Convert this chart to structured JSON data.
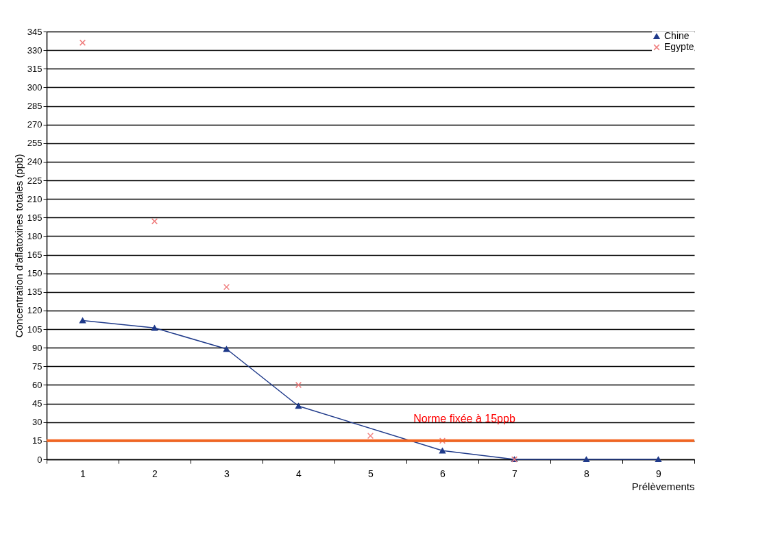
{
  "chart_data": {
    "type": "line",
    "xlabel": "Prélèvements",
    "ylabel": "Concentration d'aflatoxines totales (ppb)",
    "categories": [
      "1",
      "2",
      "3",
      "4",
      "5",
      "6",
      "7",
      "8",
      "9"
    ],
    "series": [
      {
        "name": "Chine",
        "type": "line",
        "marker": "triangle",
        "color": "#1f3a8a",
        "x": [
          "1",
          "2",
          "3",
          "4",
          "6",
          "7",
          "8",
          "9"
        ],
        "values": [
          112,
          106,
          89,
          43,
          7,
          0,
          0,
          0
        ]
      },
      {
        "name": "Egypte",
        "type": "scatter",
        "marker": "cross",
        "color": "#f08080",
        "x": [
          "1",
          "2",
          "3",
          "4",
          "5",
          "6",
          "7"
        ],
        "values": [
          336,
          192,
          139,
          60,
          19,
          15,
          0
        ]
      }
    ],
    "ylim": [
      0,
      345
    ],
    "yticks": [
      0,
      15,
      30,
      45,
      60,
      75,
      90,
      105,
      120,
      135,
      150,
      165,
      180,
      195,
      210,
      225,
      240,
      255,
      270,
      285,
      300,
      315,
      330,
      345
    ],
    "grid": "y",
    "legend": "top right",
    "ref_lines": [
      {
        "axis": "y",
        "value": 15,
        "label": "Norme fixée à 15ppb",
        "color": "#f26522"
      }
    ]
  }
}
